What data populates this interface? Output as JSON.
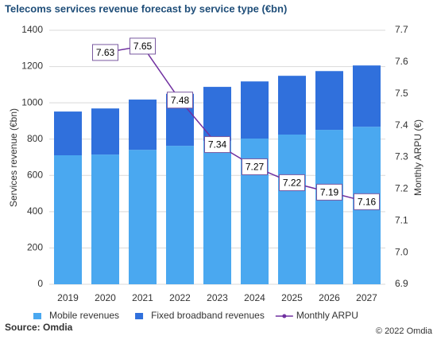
{
  "chart_data": {
    "type": "bar",
    "stacked": true,
    "title": "Telecoms services revenue forecast by service type (€bn)",
    "ylabel": "Services revenue (€bn)",
    "y2label": "Monthly ARPU (€)",
    "source": "Source: Omdia",
    "copyright": "© 2022 Omdia",
    "categories": [
      "2019",
      "2020",
      "2021",
      "2022",
      "2023",
      "2024",
      "2025",
      "2026",
      "2027"
    ],
    "series": [
      {
        "name": "Mobile revenues",
        "type": "bar",
        "color": "#4aa8f0",
        "values": [
          711,
          715,
          741,
          763,
          790,
          803,
          825,
          851,
          868
        ]
      },
      {
        "name": "Fixed broadband revenues",
        "type": "bar",
        "color": "#3070dc",
        "values": [
          241,
          254,
          277,
          287,
          298,
          315,
          324,
          324,
          338
        ]
      },
      {
        "name": "Monthly ARPU",
        "type": "line",
        "axis": "y2",
        "color": "#7030a0",
        "values": [
          null,
          7.63,
          7.65,
          7.48,
          7.34,
          7.27,
          7.22,
          7.19,
          7.16
        ]
      }
    ],
    "ylim": [
      0,
      1400
    ],
    "yticks": [
      0,
      200,
      400,
      600,
      800,
      1000,
      1200,
      1400
    ],
    "y2lim": [
      6.9,
      7.7
    ],
    "y2ticks": [
      6.9,
      {
        "value": 7,
        "label": "7.0"
      },
      7.1,
      7.2,
      7.3,
      7.4,
      7.5,
      7.6,
      7.7
    ],
    "grid": true,
    "legend": "bottom"
  }
}
